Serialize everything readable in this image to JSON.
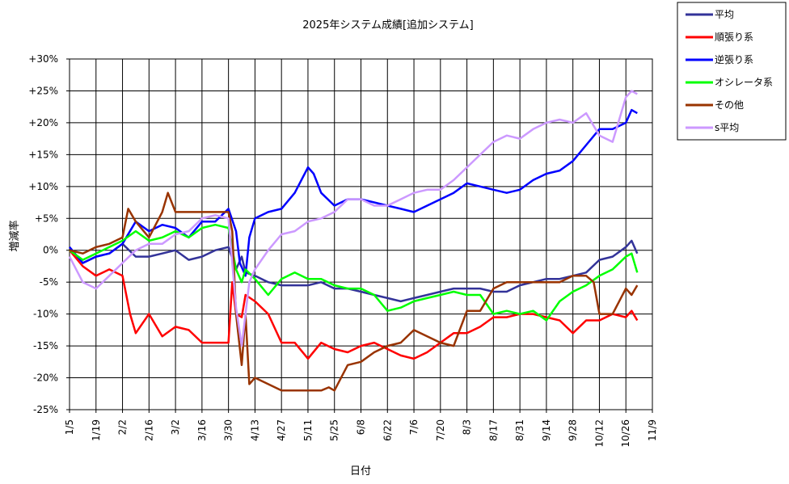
{
  "chart_data": {
    "type": "line",
    "title": "2025年システム成績[追加システム]",
    "xlabel": "日付",
    "ylabel": "増減率",
    "ylim": [
      -25,
      30
    ],
    "x_range": [
      "2025-01-05",
      "2025-11-09"
    ],
    "yticks": [
      "+30%",
      "+25%",
      "+20%",
      "+15%",
      "+10%",
      "+5%",
      "0%",
      "-5%",
      "-10%",
      "-15%",
      "-20%",
      "-25%"
    ],
    "xticks": [
      "1/5",
      "1/19",
      "2/2",
      "2/16",
      "3/2",
      "3/16",
      "3/30",
      "4/13",
      "4/27",
      "5/11",
      "5/25",
      "6/8",
      "6/22",
      "7/6",
      "7/20",
      "8/3",
      "8/17",
      "8/31",
      "9/14",
      "9/28",
      "10/12",
      "10/26",
      "11/9"
    ],
    "grid": true,
    "legend_position": "right-top",
    "series": [
      {
        "name": "平均",
        "color": "#333399",
        "x": [
          "2025-01-05",
          "2025-01-12",
          "2025-01-19",
          "2025-01-26",
          "2025-02-02",
          "2025-02-09",
          "2025-02-16",
          "2025-02-23",
          "2025-03-02",
          "2025-03-09",
          "2025-03-16",
          "2025-03-23",
          "2025-03-30",
          "2025-04-03",
          "2025-04-06",
          "2025-04-08",
          "2025-04-13",
          "2025-04-20",
          "2025-04-27",
          "2025-05-04",
          "2025-05-11",
          "2025-05-18",
          "2025-05-25",
          "2025-06-01",
          "2025-06-08",
          "2025-06-15",
          "2025-06-22",
          "2025-06-29",
          "2025-07-06",
          "2025-07-13",
          "2025-07-20",
          "2025-07-27",
          "2025-08-03",
          "2025-08-10",
          "2025-08-17",
          "2025-08-24",
          "2025-08-31",
          "2025-09-07",
          "2025-09-14",
          "2025-09-21",
          "2025-09-28",
          "2025-10-05",
          "2025-10-12",
          "2025-10-19",
          "2025-10-26",
          "2025-10-29",
          "2025-11-01"
        ],
        "values": [
          0.5,
          -2,
          -1,
          -0.5,
          1,
          -1,
          -1,
          -0.5,
          0,
          -1.5,
          -1,
          0,
          0.5,
          -3,
          -1,
          -3.5,
          -4,
          -5,
          -5.5,
          -5.5,
          -5.5,
          -5,
          -6,
          -6,
          -6.5,
          -7,
          -7.5,
          -8,
          -7.5,
          -7,
          -6.5,
          -6,
          -6,
          -6,
          -6.5,
          -6.5,
          -5.5,
          -5,
          -4.5,
          -4.5,
          -4,
          -3.5,
          -1.5,
          -1,
          0.5,
          1.5,
          -0.5
        ]
      },
      {
        "name": "順張り系",
        "color": "#ff0000",
        "x": [
          "2025-01-05",
          "2025-01-12",
          "2025-01-19",
          "2025-01-26",
          "2025-02-02",
          "2025-02-06",
          "2025-02-09",
          "2025-02-16",
          "2025-02-23",
          "2025-03-02",
          "2025-03-09",
          "2025-03-16",
          "2025-03-23",
          "2025-03-30",
          "2025-04-01",
          "2025-04-03",
          "2025-04-06",
          "2025-04-08",
          "2025-04-13",
          "2025-04-20",
          "2025-04-27",
          "2025-05-04",
          "2025-05-11",
          "2025-05-18",
          "2025-05-25",
          "2025-06-01",
          "2025-06-08",
          "2025-06-15",
          "2025-06-22",
          "2025-06-29",
          "2025-07-06",
          "2025-07-13",
          "2025-07-20",
          "2025-07-27",
          "2025-08-03",
          "2025-08-10",
          "2025-08-17",
          "2025-08-24",
          "2025-08-31",
          "2025-09-07",
          "2025-09-14",
          "2025-09-21",
          "2025-09-28",
          "2025-10-05",
          "2025-10-12",
          "2025-10-19",
          "2025-10-26",
          "2025-10-29",
          "2025-11-01"
        ],
        "values": [
          0,
          -2.5,
          -4,
          -3,
          -4,
          -10,
          -13,
          -10,
          -13.5,
          -12,
          -12.5,
          -14.5,
          -14.5,
          -14.5,
          -5,
          -10,
          -10.5,
          -7,
          -8,
          -10,
          -14.5,
          -14.5,
          -17,
          -14.5,
          -15.5,
          -16,
          -15,
          -14.5,
          -15.5,
          -16.5,
          -17,
          -16,
          -14.5,
          -13,
          -13,
          -12,
          -10.5,
          -10.5,
          -10,
          -10,
          -10.5,
          -11,
          -13,
          -11,
          -11,
          -10,
          -10.5,
          -9.5,
          -11
        ]
      },
      {
        "name": "逆張り系",
        "color": "#0000ff",
        "x": [
          "2025-01-05",
          "2025-01-12",
          "2025-01-19",
          "2025-01-26",
          "2025-02-02",
          "2025-02-09",
          "2025-02-16",
          "2025-02-23",
          "2025-03-02",
          "2025-03-09",
          "2025-03-16",
          "2025-03-23",
          "2025-03-30",
          "2025-04-03",
          "2025-04-05",
          "2025-04-08",
          "2025-04-10",
          "2025-04-13",
          "2025-04-20",
          "2025-04-27",
          "2025-05-04",
          "2025-05-11",
          "2025-05-14",
          "2025-05-18",
          "2025-05-25",
          "2025-06-01",
          "2025-06-08",
          "2025-06-15",
          "2025-06-22",
          "2025-06-29",
          "2025-07-06",
          "2025-07-13",
          "2025-07-20",
          "2025-07-27",
          "2025-08-03",
          "2025-08-10",
          "2025-08-17",
          "2025-08-24",
          "2025-08-31",
          "2025-09-07",
          "2025-09-14",
          "2025-09-21",
          "2025-09-28",
          "2025-10-05",
          "2025-10-12",
          "2025-10-19",
          "2025-10-26",
          "2025-10-29",
          "2025-11-01"
        ],
        "values": [
          0.5,
          -2,
          -1,
          -0.5,
          1,
          4.5,
          3,
          4,
          3.5,
          2,
          4.5,
          4.5,
          6.5,
          3,
          -2,
          -4,
          2,
          5,
          6,
          6.5,
          9,
          13,
          12,
          9,
          7,
          8,
          8,
          7.5,
          7,
          6.5,
          6,
          7,
          8,
          9,
          10.5,
          10,
          9.5,
          9,
          9.5,
          11,
          12,
          12.5,
          14,
          16.5,
          19,
          19,
          20,
          22,
          21.5
        ]
      },
      {
        "name": "オシレータ系",
        "color": "#00ff00",
        "x": [
          "2025-01-05",
          "2025-01-12",
          "2025-01-19",
          "2025-01-26",
          "2025-02-02",
          "2025-02-09",
          "2025-02-16",
          "2025-02-23",
          "2025-03-02",
          "2025-03-09",
          "2025-03-16",
          "2025-03-23",
          "2025-03-30",
          "2025-04-03",
          "2025-04-06",
          "2025-04-08",
          "2025-04-13",
          "2025-04-20",
          "2025-04-27",
          "2025-05-04",
          "2025-05-11",
          "2025-05-18",
          "2025-05-25",
          "2025-06-01",
          "2025-06-08",
          "2025-06-15",
          "2025-06-22",
          "2025-06-29",
          "2025-07-06",
          "2025-07-13",
          "2025-07-20",
          "2025-07-27",
          "2025-08-03",
          "2025-08-10",
          "2025-08-17",
          "2025-08-24",
          "2025-08-31",
          "2025-09-07",
          "2025-09-14",
          "2025-09-21",
          "2025-09-28",
          "2025-10-05",
          "2025-10-12",
          "2025-10-19",
          "2025-10-26",
          "2025-10-29",
          "2025-11-01"
        ],
        "values": [
          0,
          -1.5,
          -0.5,
          0.5,
          1.5,
          3,
          1.5,
          2,
          3,
          2,
          3.5,
          4,
          3.5,
          -3,
          -5,
          -3,
          -4.5,
          -7,
          -4.5,
          -3.5,
          -4.5,
          -4.5,
          -5.5,
          -6,
          -6,
          -7,
          -9.5,
          -9,
          -8,
          -7.5,
          -7,
          -6.5,
          -7,
          -7,
          -10,
          -9.5,
          -10,
          -9.5,
          -11,
          -8,
          -6.5,
          -5.5,
          -4,
          -3,
          -1,
          -0.5,
          -3.5
        ]
      },
      {
        "name": "その他",
        "color": "#993300",
        "x": [
          "2025-01-05",
          "2025-01-12",
          "2025-01-19",
          "2025-01-26",
          "2025-02-02",
          "2025-02-05",
          "2025-02-09",
          "2025-02-16",
          "2025-02-23",
          "2025-02-26",
          "2025-03-02",
          "2025-03-09",
          "2025-03-16",
          "2025-03-23",
          "2025-03-30",
          "2025-04-01",
          "2025-04-03",
          "2025-04-06",
          "2025-04-08",
          "2025-04-10",
          "2025-04-13",
          "2025-04-20",
          "2025-04-27",
          "2025-05-04",
          "2025-05-11",
          "2025-05-18",
          "2025-05-22",
          "2025-05-25",
          "2025-06-01",
          "2025-06-08",
          "2025-06-15",
          "2025-06-22",
          "2025-06-29",
          "2025-07-06",
          "2025-07-13",
          "2025-07-20",
          "2025-07-27",
          "2025-08-03",
          "2025-08-10",
          "2025-08-17",
          "2025-08-24",
          "2025-08-31",
          "2025-09-07",
          "2025-09-14",
          "2025-09-21",
          "2025-09-28",
          "2025-10-05",
          "2025-10-09",
          "2025-10-12",
          "2025-10-19",
          "2025-10-26",
          "2025-10-29",
          "2025-11-01"
        ],
        "values": [
          0,
          -0.5,
          0.5,
          1,
          2,
          6.5,
          4.5,
          2,
          6,
          9,
          6,
          6,
          6,
          6,
          6,
          3,
          -10,
          -18,
          -10,
          -21,
          -20,
          -21,
          -22,
          -22,
          -22,
          -22,
          -21.5,
          -22,
          -18,
          -17.5,
          -16,
          -15,
          -14.5,
          -12.5,
          -13.5,
          -14.5,
          -15,
          -9.5,
          -9.5,
          -6,
          -5,
          -5,
          -5,
          -5,
          -5,
          -4,
          -4,
          -5,
          -10,
          -10,
          -6,
          -7,
          -5.5
        ]
      },
      {
        "name": "s平均",
        "color": "#cc99ff",
        "x": [
          "2025-01-05",
          "2025-01-12",
          "2025-01-19",
          "2025-01-26",
          "2025-02-02",
          "2025-02-09",
          "2025-02-16",
          "2025-02-23",
          "2025-03-02",
          "2025-03-09",
          "2025-03-16",
          "2025-03-23",
          "2025-03-30",
          "2025-04-01",
          "2025-04-03",
          "2025-04-06",
          "2025-04-08",
          "2025-04-10",
          "2025-04-13",
          "2025-04-20",
          "2025-04-27",
          "2025-05-04",
          "2025-05-11",
          "2025-05-18",
          "2025-05-25",
          "2025-06-01",
          "2025-06-08",
          "2025-06-15",
          "2025-06-22",
          "2025-06-29",
          "2025-07-06",
          "2025-07-13",
          "2025-07-20",
          "2025-07-27",
          "2025-08-03",
          "2025-08-10",
          "2025-08-17",
          "2025-08-24",
          "2025-08-31",
          "2025-09-07",
          "2025-09-14",
          "2025-09-21",
          "2025-09-28",
          "2025-10-05",
          "2025-10-12",
          "2025-10-19",
          "2025-10-26",
          "2025-10-29",
          "2025-11-01"
        ],
        "values": [
          -1,
          -5,
          -6,
          -4,
          -2,
          0,
          1,
          1,
          2.5,
          3,
          5,
          5.5,
          5,
          -2,
          -9,
          -15,
          -10,
          -5,
          -3,
          0,
          2.5,
          3,
          4.5,
          5,
          6,
          8,
          8,
          7,
          7,
          8,
          9,
          9.5,
          9.5,
          11,
          13,
          15,
          17,
          18,
          17.5,
          19,
          20,
          20.5,
          20,
          21.5,
          18,
          17,
          24,
          25,
          24.5
        ]
      }
    ]
  }
}
